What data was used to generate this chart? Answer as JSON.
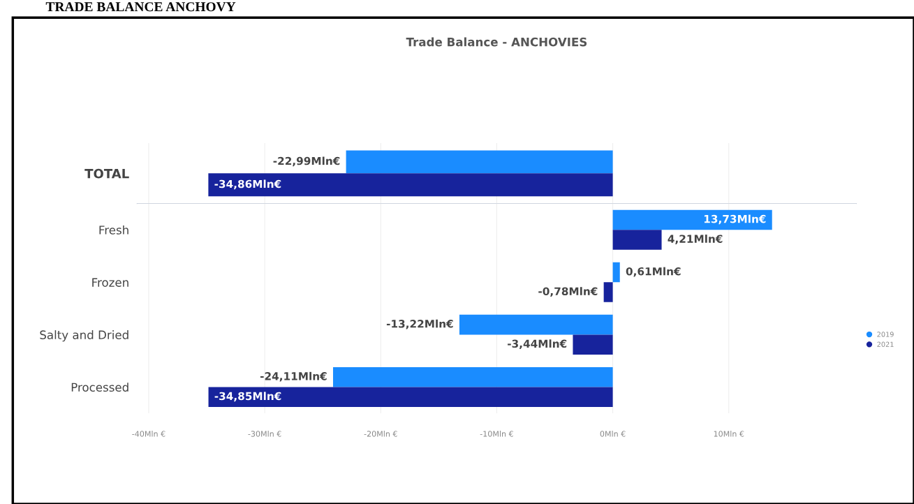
{
  "chart_data": [
    {
      "type": "bar",
      "orientation": "horizontal",
      "title": "Trade Balance - ANCHOVIES",
      "annotations": [
        "TRADE BALANCE ANCHOVY"
      ],
      "categories": [
        "TOTAL"
      ],
      "series": [
        {
          "color": "#1a8cff",
          "values": [
            -22.99
          ],
          "value_labels": [
            "-22,99Mln€"
          ]
        },
        {
          "color": "#17239c",
          "values": [
            -34.86
          ],
          "value_labels": [
            "-34,86Mln€"
          ]
        }
      ],
      "xlim": [
        -41,
        21
      ],
      "xticks": [
        {
          "value": -40,
          "label": null
        },
        {
          "value": -30,
          "label": null
        },
        {
          "value": -20,
          "label": null
        },
        {
          "value": -10,
          "label": null
        },
        {
          "value": 0,
          "label": null
        },
        {
          "value": 10,
          "label": null
        }
      ],
      "grid": "x",
      "tick_labels": "y"
    },
    {
      "type": "bar",
      "orientation": "horizontal",
      "categories": [
        "Fresh",
        "Frozen",
        "Salty and Dried",
        "Processed"
      ],
      "series": [
        {
          "name": "2019",
          "color": "#1a8cff",
          "values": [
            13.73,
            0.61,
            -13.22,
            -24.11
          ],
          "value_labels": [
            "13,73Mln€",
            "0,61Mln€",
            "-13,22Mln€",
            "-24,11Mln€"
          ]
        },
        {
          "name": "2021",
          "color": "#17239c",
          "values": [
            4.21,
            -0.78,
            -3.44,
            -34.85
          ],
          "value_labels": [
            "4,21Mln€",
            "-0,78Mln€",
            "-3,44Mln€",
            "-34,85Mln€"
          ]
        }
      ],
      "xlim": [
        -41,
        21
      ],
      "xticks": [
        {
          "value": -40,
          "label": "-40Mln €"
        },
        {
          "value": -30,
          "label": "-30Mln €"
        },
        {
          "value": -20,
          "label": "-20Mln €"
        },
        {
          "value": -10,
          "label": "-10Mln €"
        },
        {
          "value": 0,
          "label": "0Mln €"
        },
        {
          "value": 10,
          "label": "10Mln €"
        }
      ],
      "grid": "x",
      "legend": "right"
    }
  ]
}
